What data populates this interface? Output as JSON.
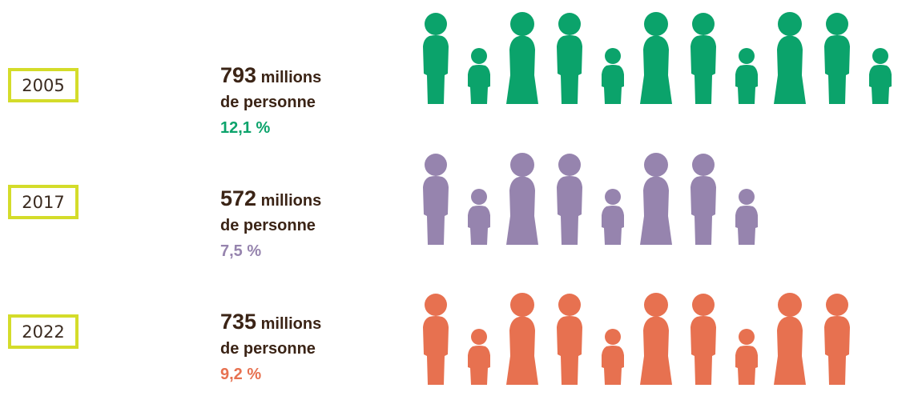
{
  "chart_data": {
    "type": "pictogram",
    "rows": [
      {
        "year": "2005",
        "value_number": "793",
        "value_unit": "millions",
        "value_suffix": "de personne",
        "percent": "12,1 %",
        "percent_value": 12.1,
        "color": "#0ba36b",
        "figures": [
          "man",
          "child",
          "woman",
          "man",
          "child",
          "woman",
          "man",
          "child",
          "woman",
          "man",
          "child"
        ]
      },
      {
        "year": "2017",
        "value_number": "572",
        "value_unit": "millions",
        "value_suffix": "de personne",
        "percent": "7,5 %",
        "percent_value": 7.5,
        "color": "#9684ae",
        "figures": [
          "man",
          "child",
          "woman",
          "man",
          "child",
          "woman",
          "man",
          "child"
        ]
      },
      {
        "year": "2022",
        "value_number": "735",
        "value_unit": "millions",
        "value_suffix": "de personne",
        "percent": "9,2 %",
        "percent_value": 9.2,
        "color": "#e77150",
        "figures": [
          "man",
          "child",
          "woman",
          "man",
          "child",
          "woman",
          "man",
          "child",
          "woman",
          "man"
        ]
      }
    ]
  },
  "colors": {
    "year_border": "#d4dc2a",
    "text": "#3b2416"
  }
}
